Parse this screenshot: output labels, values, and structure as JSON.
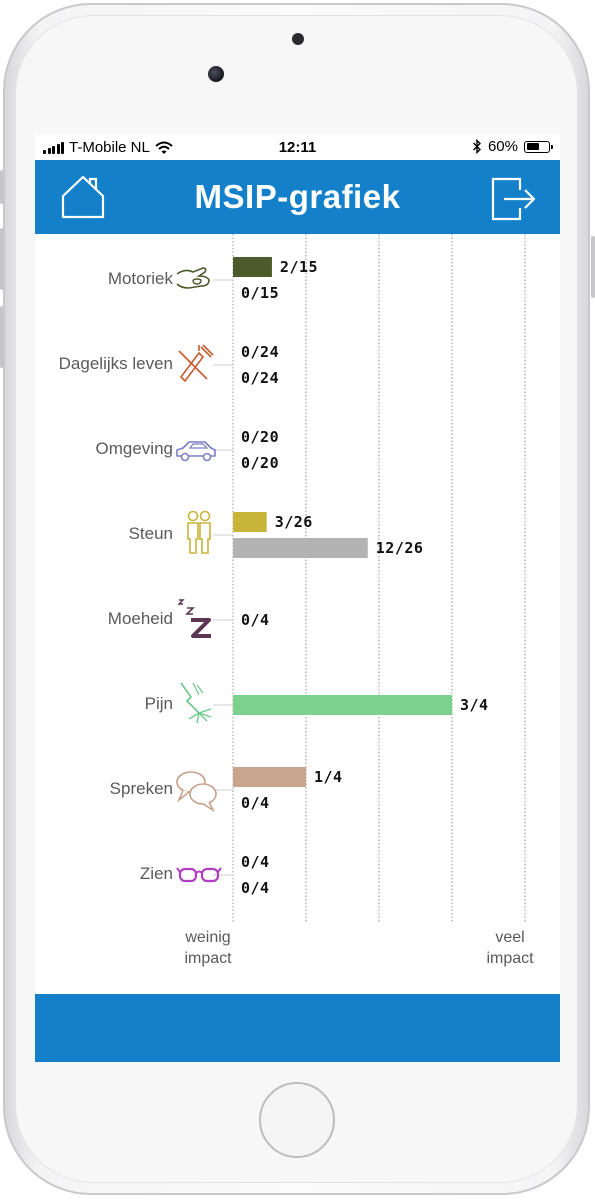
{
  "status_bar": {
    "carrier": "T-Mobile NL",
    "time": "12:11",
    "battery": "60%",
    "battery_level": 0.6
  },
  "header": {
    "title": "MSIP-grafiek",
    "home_icon": "home-icon",
    "exit_icon": "exit-icon"
  },
  "axis": {
    "low_label_line1": "weinig",
    "low_label_line2": "impact",
    "high_label_line1": "veel",
    "high_label_line2": "impact"
  },
  "chart_data": {
    "type": "bar",
    "orientation": "horizontal",
    "xlim": [
      0,
      1
    ],
    "grid": true,
    "categories": [
      {
        "name": "Motoriek",
        "icon": "hand-icon",
        "icon_color": "#4d5a2b",
        "bars": [
          {
            "score": 2,
            "max": 15,
            "label": "2/15",
            "color": "#4d5a2b"
          },
          {
            "score": 0,
            "max": 15,
            "label": "0/15",
            "color": "#4d5a2b"
          }
        ]
      },
      {
        "name": "Dagelijks leven",
        "icon": "toothbrush-icon",
        "icon_color": "#c85a2e",
        "bars": [
          {
            "score": 0,
            "max": 24,
            "label": "0/24",
            "color": "#c85a2e"
          },
          {
            "score": 0,
            "max": 24,
            "label": "0/24",
            "color": "#c85a2e"
          }
        ]
      },
      {
        "name": "Omgeving",
        "icon": "car-icon",
        "icon_color": "#7b7fc4",
        "bars": [
          {
            "score": 0,
            "max": 20,
            "label": "0/20",
            "color": "#7b7fc4"
          },
          {
            "score": 0,
            "max": 20,
            "label": "0/20",
            "color": "#7b7fc4"
          }
        ]
      },
      {
        "name": "Steun",
        "icon": "people-icon",
        "icon_color": "#c9b43a",
        "bars": [
          {
            "score": 3,
            "max": 26,
            "label": "3/26",
            "color": "#c9b43a"
          },
          {
            "score": 12,
            "max": 26,
            "label": "12/26",
            "color": "#b3b3b3"
          }
        ]
      },
      {
        "name": "Moeheid",
        "icon": "sleep-icon",
        "icon_color": "#5a3650",
        "bars": [
          {
            "score": 0,
            "max": 4,
            "label": "0/4",
            "color": "#5a3650"
          }
        ]
      },
      {
        "name": "Pijn",
        "icon": "pain-icon",
        "icon_color": "#6cc98a",
        "bars": [
          {
            "score": 3,
            "max": 4,
            "label": "3/4",
            "color": "#7ed08f"
          }
        ]
      },
      {
        "name": "Spreken",
        "icon": "speech-icon",
        "icon_color": "#c8a08a",
        "bars": [
          {
            "score": 1,
            "max": 4,
            "label": "1/4",
            "color": "#c9a48f"
          },
          {
            "score": 0,
            "max": 4,
            "label": "0/4",
            "color": "#c9a48f"
          }
        ]
      },
      {
        "name": "Zien",
        "icon": "glasses-icon",
        "icon_color": "#b03ec0",
        "bars": [
          {
            "score": 0,
            "max": 4,
            "label": "0/4",
            "color": "#b03ec0"
          },
          {
            "score": 0,
            "max": 4,
            "label": "0/4",
            "color": "#b03ec0"
          }
        ]
      }
    ]
  }
}
